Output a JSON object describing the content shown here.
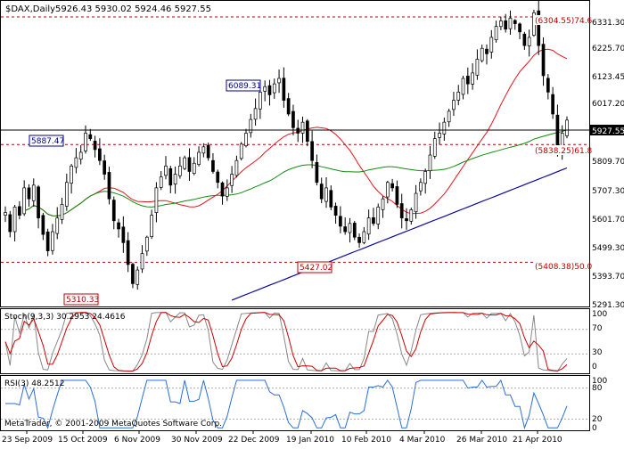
{
  "header": {
    "symbol": "$DAX,Daily",
    "ohlc": "5926.43 5930.02 5924.46 5927.55"
  },
  "price_axis": {
    "ticks": [
      "6331.30",
      "6225.70",
      "6123.45",
      "6017.20",
      "5809.70",
      "5707.30",
      "5601.70",
      "5499.30",
      "5393.70",
      "5291.30"
    ],
    "current_price": "5927.55"
  },
  "annotations": {
    "fib_top": "(6304.55)74.6",
    "fib_mid": "(5838.25)61.8",
    "fib_low": "(5408.38)50.0",
    "label_5887": "5887.47",
    "label_6089": "6089.31",
    "label_5427": "5427.02",
    "label_5310": "5310.33"
  },
  "stoch": {
    "label": "Stoch(9,3,3) 30.2953 24.4616",
    "ticks": [
      "100",
      "70",
      "30",
      "0"
    ]
  },
  "rsi": {
    "label": "RSI(3) 48.2512",
    "ticks": [
      "100",
      "80",
      "20",
      "0"
    ]
  },
  "copyright": "MetaTrader, © 2001-2009 MetaQuotes Software Corp.",
  "x_axis": [
    "23 Sep 2009",
    "15 Oct 2009",
    "6 Nov 2009",
    "30 Nov 2009",
    "22 Dec 2009",
    "19 Jan 2010",
    "10 Feb 2010",
    "4 Mar 2010",
    "26 Mar 2010",
    "21 Apr 2010"
  ],
  "colors": {
    "candle": "#000000",
    "ma_red": "#e4141b",
    "ma_green": "#118a11",
    "ma_blue": "#0a0a96",
    "fib_line": "#c00000",
    "stoch_main": "#888888",
    "stoch_signal": "#d00000",
    "rsi_line": "#2a6fd6"
  },
  "chart_data": {
    "type": "candlestick",
    "symbol": "$DAX",
    "timeframe": "Daily",
    "ylim": [
      5250,
      6360
    ],
    "y_ticks": [
      6331.3,
      6225.7,
      6123.45,
      6017.2,
      5809.7,
      5707.3,
      5601.7,
      5499.3,
      5393.7,
      5291.3
    ],
    "x_labels": [
      "23 Sep 2009",
      "15 Oct 2009",
      "6 Nov 2009",
      "30 Nov 2009",
      "22 Dec 2009",
      "19 Jan 2010",
      "10 Feb 2010",
      "4 Mar 2010",
      "26 Mar 2010",
      "21 Apr 2010"
    ],
    "close_series": [
      5590,
      5520,
      5610,
      5580,
      5680,
      5640,
      5690,
      5570,
      5510,
      5450,
      5520,
      5570,
      5620,
      5700,
      5760,
      5790,
      5810,
      5880,
      5860,
      5820,
      5780,
      5730,
      5640,
      5560,
      5530,
      5480,
      5400,
      5330,
      5380,
      5440,
      5500,
      5580,
      5680,
      5720,
      5760,
      5690,
      5730,
      5760,
      5790,
      5740,
      5770,
      5810,
      5830,
      5790,
      5740,
      5700,
      5650,
      5680,
      5730,
      5780,
      5840,
      5880,
      5930,
      5970,
      6030,
      6050,
      6020,
      6060,
      6080,
      6000,
      5950,
      5900,
      5880,
      5920,
      5850,
      5780,
      5700,
      5640,
      5680,
      5610,
      5580,
      5540,
      5520,
      5550,
      5500,
      5480,
      5520,
      5570,
      5550,
      5610,
      5640,
      5700,
      5680,
      5620,
      5570,
      5560,
      5600,
      5660,
      5700,
      5740,
      5800,
      5860,
      5880,
      5920,
      5960,
      6000,
      6030,
      6080,
      6060,
      6100,
      6150,
      6190,
      6170,
      6230,
      6270,
      6290,
      6260,
      6300,
      6280,
      6250,
      6200,
      6230,
      6320,
      6200,
      6090,
      6030,
      5950,
      5820,
      5880,
      5927.55
    ],
    "fib_levels": [
      {
        "label": "(6304.55)74.6",
        "value": 6304.55
      },
      {
        "label": "(5838.25)61.8",
        "value": 5838.25
      },
      {
        "label": "(5408.38)50.0",
        "value": 5408.38
      }
    ],
    "price_labels": [
      5887.47,
      6089.31,
      5427.02,
      5310.33
    ],
    "current_price": 5927.55,
    "indicators": [
      {
        "name": "Stoch(9,3,3)",
        "main": 30.2953,
        "signal": 24.4616,
        "levels": [
          70,
          30
        ]
      },
      {
        "name": "RSI(3)",
        "value": 48.2512,
        "levels": [
          80,
          20
        ]
      }
    ]
  }
}
